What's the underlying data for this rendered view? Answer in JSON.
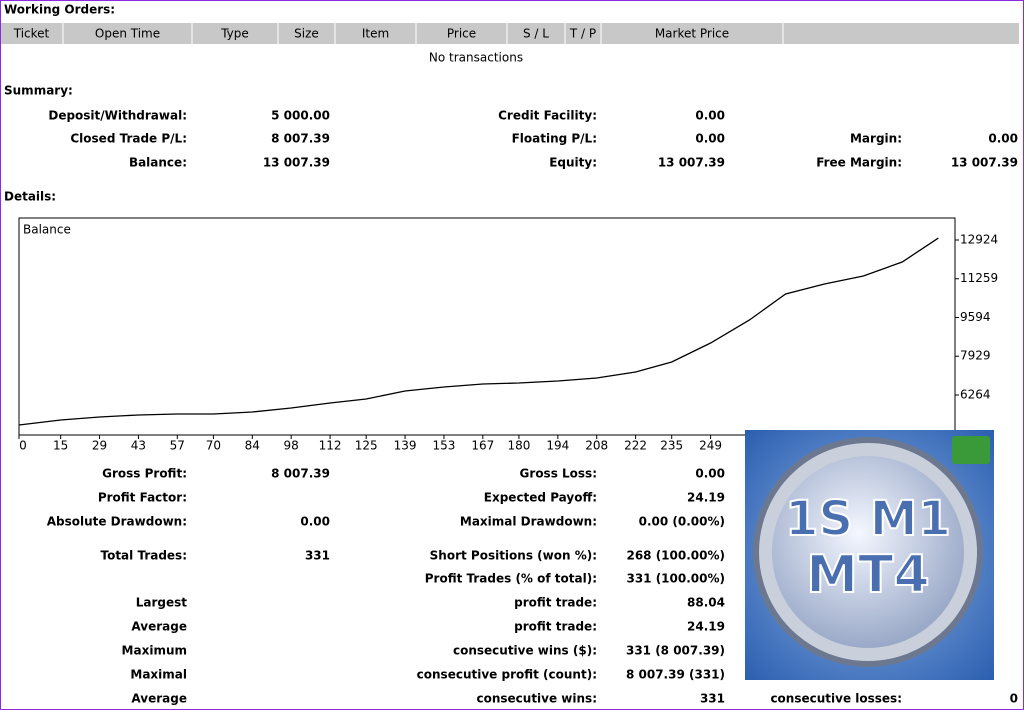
{
  "working_orders": {
    "title": "Working Orders:",
    "columns": [
      "Ticket",
      "Open Time",
      "Type",
      "Size",
      "Item",
      "Price",
      "S / L",
      "T / P",
      "Market Price"
    ],
    "empty": "No transactions"
  },
  "summary": {
    "title": "Summary:",
    "rows": [
      {
        "c1": "Deposit/Withdrawal:",
        "v1": "5 000.00",
        "c2": "Credit Facility:",
        "v2": "0.00"
      },
      {
        "c1": "Closed Trade P/L:",
        "v1": "8 007.39",
        "c2": "Floating P/L:",
        "v2": "0.00",
        "c3": "Margin:",
        "v3": "0.00"
      },
      {
        "c1": "Balance:",
        "v1": "13 007.39",
        "c2": "Equity:",
        "v2": "13 007.39",
        "c3": "Free Margin:",
        "v3": "13 007.39"
      }
    ]
  },
  "details": {
    "title": "Details:",
    "rows": [
      {
        "c1": "Gross Profit:",
        "v1": "8 007.39",
        "c2": "Gross Loss:",
        "v2": "0.00"
      },
      {
        "c1": "Profit Factor:",
        "c2": "Expected Payoff:",
        "v2": "24.19"
      },
      {
        "c1": "Absolute Drawdown:",
        "v1": "0.00",
        "c2": "Maximal Drawdown:",
        "v2": "0.00 (0.00%)"
      },
      {
        "c1": "Total Trades:",
        "v1": "331",
        "c2": "Short Positions (won %):",
        "v2": "268 (100.00%)"
      },
      {
        "c2": "Profit Trades (% of total):",
        "v2": "331 (100.00%)"
      },
      {
        "c1": "Largest",
        "c2": "profit trade:",
        "v2": "88.04"
      },
      {
        "c1": "Average",
        "c2": "profit trade:",
        "v2": "24.19"
      },
      {
        "c1": "Maximum",
        "c2": "consecutive wins ($):",
        "v2": "331 (8 007.39)"
      },
      {
        "c1": "Maximal",
        "c2": "consecutive profit (count):",
        "v2": "8 007.39 (331)"
      },
      {
        "c1": "Average",
        "c2": "consecutive wins:",
        "v2": "331",
        "c3": "consecutive losses:",
        "v3": "0"
      }
    ]
  },
  "chart_data": {
    "type": "line",
    "title": "Balance",
    "x": [
      0,
      15,
      29,
      43,
      57,
      70,
      84,
      98,
      112,
      125,
      139,
      153,
      167,
      180,
      194,
      208,
      222,
      235,
      249,
      263,
      276,
      290,
      304,
      318,
      331
    ],
    "series": [
      {
        "name": "Balance",
        "color": "#000000",
        "values": [
          4975,
          5190,
          5319,
          5405,
          5448,
          5448,
          5534,
          5705,
          5920,
          6092,
          6436,
          6608,
          6737,
          6780,
          6866,
          6995,
          7253,
          7682,
          8498,
          9487,
          10604,
          11034,
          11378,
          11979,
          13007
        ]
      }
    ],
    "xlim": [
      0,
      337
    ],
    "xticks": [
      0,
      15,
      29,
      43,
      57,
      70,
      84,
      98,
      112,
      125,
      139,
      153,
      167,
      180,
      194,
      208,
      222,
      235,
      249
    ],
    "ylim": [
      4545,
      13869
    ],
    "yticks": [
      6264,
      7929,
      9594,
      11259,
      12924
    ]
  },
  "logo": {
    "line1": "1S M1",
    "line2": "MT4"
  }
}
